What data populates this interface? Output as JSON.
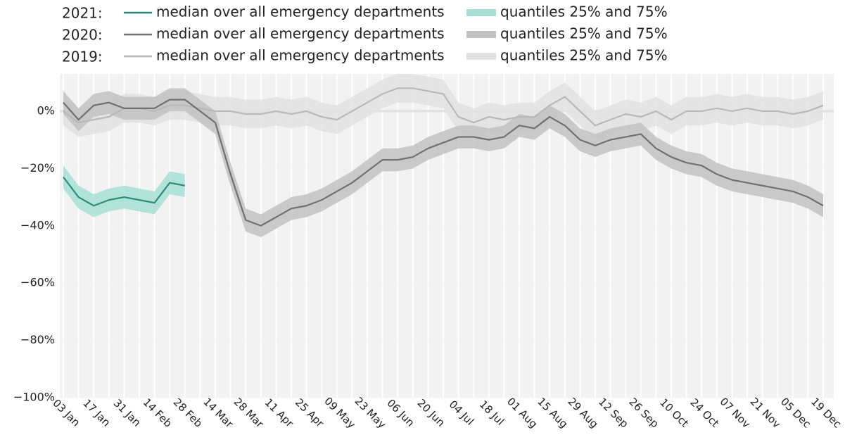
{
  "chart_data": {
    "type": "line",
    "categories": [
      "03 Jan",
      null,
      "17 Jan",
      null,
      "31 Jan",
      null,
      "14 Feb",
      null,
      "28 Feb",
      null,
      "14 Mar",
      null,
      "28 Mar",
      null,
      "11 Apr",
      null,
      "25 Apr",
      null,
      "09 May",
      null,
      "23 May",
      null,
      "06 Jun",
      null,
      "20 Jun",
      null,
      "04 Jul",
      null,
      "18 Jul",
      null,
      "01 Aug",
      null,
      "15 Aug",
      null,
      "29 Aug",
      null,
      "12 Sep",
      null,
      "26 Sep",
      null,
      "10 Oct",
      null,
      "24 Oct",
      null,
      "07 Nov",
      null,
      "21 Nov",
      null,
      "05 Dec",
      null,
      "19 Dec"
    ],
    "ylim": [
      -100,
      13
    ],
    "yticks": [
      {
        "value": 0,
        "label": "0%"
      },
      {
        "value": -20,
        "label": "−20%"
      },
      {
        "value": -40,
        "label": "−40%"
      },
      {
        "value": -60,
        "label": "−60%"
      },
      {
        "value": -80,
        "label": "−80%"
      },
      {
        "value": -100,
        "label": "−100%"
      }
    ],
    "groups": [
      {
        "label": "2019:",
        "median": {
          "name": "median over all emergency departments",
          "color": "#b8b8b8",
          "values": [
            0,
            -4,
            -3,
            -2,
            1,
            1,
            0,
            2,
            2,
            1,
            0,
            0,
            -1,
            -1,
            0,
            -1,
            0,
            -2,
            -3,
            0,
            3,
            6,
            8,
            8,
            7,
            6,
            -2,
            -4,
            -2,
            -3,
            -2,
            -2,
            2,
            5,
            0,
            -5,
            -3,
            -1,
            -2,
            0,
            -3,
            0,
            0,
            1,
            0,
            1,
            0,
            0,
            -1,
            0,
            2
          ]
        },
        "quantiles": {
          "name": "quantiles 25% and 75%",
          "color": "#e2e2e2",
          "low": [
            -5,
            -9,
            -8,
            -7,
            -4,
            -4,
            -5,
            -3,
            -3,
            -4,
            -5,
            -5,
            -6,
            -6,
            -5,
            -6,
            -5,
            -7,
            -8,
            -5,
            -2,
            1,
            3,
            3,
            2,
            1,
            -7,
            -9,
            -7,
            -8,
            -7,
            -7,
            -3,
            0,
            -5,
            -10,
            -8,
            -6,
            -7,
            -5,
            -8,
            -5,
            -5,
            -4,
            -5,
            -4,
            -5,
            -5,
            -6,
            -5,
            -3
          ],
          "high": [
            5,
            1,
            2,
            3,
            6,
            6,
            5,
            7,
            7,
            6,
            5,
            5,
            4,
            4,
            5,
            4,
            5,
            3,
            2,
            5,
            8,
            11,
            13,
            13,
            12,
            11,
            3,
            1,
            3,
            2,
            3,
            3,
            7,
            10,
            5,
            0,
            2,
            4,
            3,
            5,
            2,
            5,
            5,
            6,
            5,
            6,
            5,
            5,
            4,
            5,
            7
          ]
        }
      },
      {
        "label": "2020:",
        "median": {
          "name": "median over all emergency departments",
          "color": "#707070",
          "values": [
            3,
            -3,
            2,
            3,
            1,
            1,
            1,
            4,
            4,
            0,
            -4,
            -22,
            -38,
            -40,
            -37,
            -34,
            -33,
            -31,
            -28,
            -25,
            -21,
            -17,
            -17,
            -16,
            -13,
            -11,
            -9,
            -9,
            -10,
            -9,
            -5,
            -6,
            -2,
            -5,
            -10,
            -12,
            -10,
            -9,
            -8,
            -13,
            -16,
            -18,
            -19,
            -22,
            -24,
            -25,
            -26,
            -27,
            -28,
            -30,
            -33
          ]
        },
        "quantiles": {
          "name": "quantiles 25% and 75%",
          "color": "#c2c2c2",
          "low": [
            -1,
            -7,
            -2,
            -1,
            -3,
            -3,
            -3,
            0,
            0,
            -4,
            -8,
            -26,
            -42,
            -44,
            -41,
            -38,
            -37,
            -35,
            -32,
            -29,
            -25,
            -21,
            -21,
            -20,
            -17,
            -15,
            -13,
            -13,
            -14,
            -13,
            -9,
            -10,
            -6,
            -9,
            -14,
            -16,
            -14,
            -13,
            -12,
            -17,
            -20,
            -22,
            -23,
            -26,
            -28,
            -29,
            -30,
            -31,
            -32,
            -34,
            -37
          ],
          "high": [
            7,
            1,
            6,
            7,
            5,
            5,
            5,
            8,
            8,
            4,
            0,
            -18,
            -34,
            -36,
            -33,
            -30,
            -29,
            -27,
            -24,
            -21,
            -17,
            -13,
            -13,
            -12,
            -9,
            -7,
            -5,
            -5,
            -6,
            -5,
            -1,
            -2,
            2,
            -1,
            -6,
            -8,
            -6,
            -5,
            -4,
            -9,
            -12,
            -14,
            -15,
            -18,
            -20,
            -21,
            -22,
            -23,
            -24,
            -26,
            -29
          ]
        }
      },
      {
        "label": "2021:",
        "median": {
          "name": "median over all emergency departments",
          "color": "#2e8b7a",
          "values": [
            -23,
            -30,
            -33,
            -31,
            -30,
            -31,
            -32,
            -25,
            -26,
            null,
            null,
            null,
            null,
            null,
            null,
            null,
            null,
            null,
            null,
            null,
            null,
            null,
            null,
            null,
            null,
            null,
            null,
            null,
            null,
            null,
            null,
            null,
            null,
            null,
            null,
            null,
            null,
            null,
            null,
            null,
            null,
            null,
            null,
            null,
            null,
            null,
            null,
            null,
            null,
            null,
            null
          ]
        },
        "quantiles": {
          "name": "quantiles 25% and 75%",
          "color": "#a6e0d4",
          "low": [
            -27,
            -34,
            -37,
            -35,
            -34,
            -35,
            -36,
            -29,
            -30,
            null,
            null,
            null,
            null,
            null,
            null,
            null,
            null,
            null,
            null,
            null,
            null,
            null,
            null,
            null,
            null,
            null,
            null,
            null,
            null,
            null,
            null,
            null,
            null,
            null,
            null,
            null,
            null,
            null,
            null,
            null,
            null,
            null,
            null,
            null,
            null,
            null,
            null,
            null,
            null,
            null,
            null
          ],
          "high": [
            -19,
            -26,
            -29,
            -27,
            -26,
            -27,
            -28,
            -21,
            -22,
            null,
            null,
            null,
            null,
            null,
            null,
            null,
            null,
            null,
            null,
            null,
            null,
            null,
            null,
            null,
            null,
            null,
            null,
            null,
            null,
            null,
            null,
            null,
            null,
            null,
            null,
            null,
            null,
            null,
            null,
            null,
            null,
            null,
            null,
            null,
            null,
            null,
            null,
            null,
            null,
            null,
            null
          ]
        }
      }
    ]
  }
}
